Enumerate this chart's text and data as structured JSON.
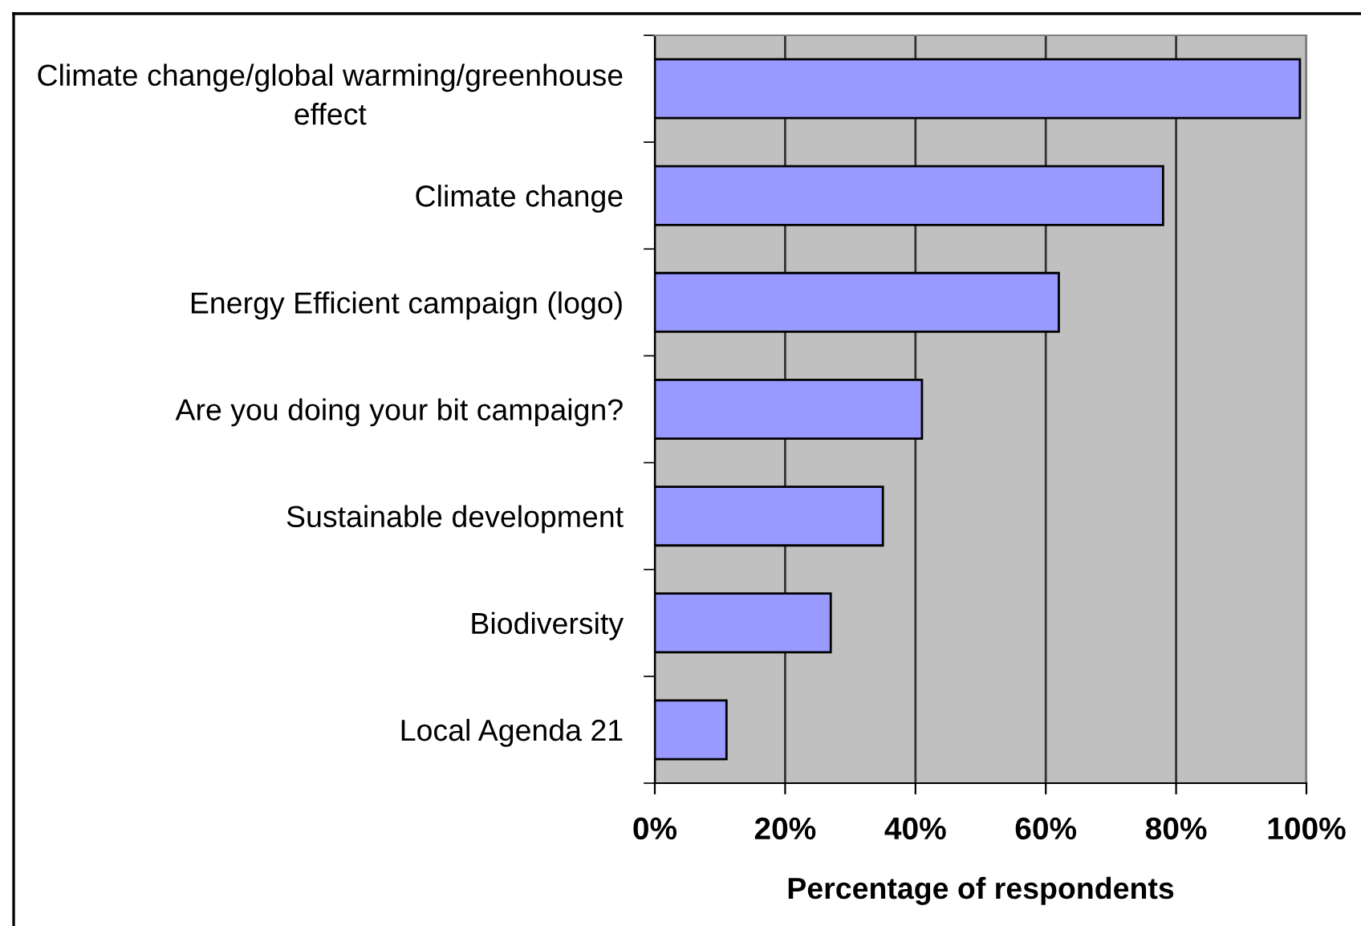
{
  "chart_data": {
    "type": "bar",
    "orientation": "horizontal",
    "categories": [
      "Climate change/global warming/greenhouse\neffect",
      "Climate change",
      "Energy Efficient campaign (logo)",
      "Are you doing your bit campaign?",
      "Sustainable development",
      "Biodiversity",
      "Local Agenda 21"
    ],
    "values": [
      99,
      78,
      62,
      41,
      35,
      27,
      11
    ],
    "color": "#9999ff",
    "xlabel": "Percentage of respondents",
    "xlim": [
      0,
      100
    ],
    "xticks": [
      {
        "value": 0,
        "label": "0%"
      },
      {
        "value": 20,
        "label": "20%"
      },
      {
        "value": 40,
        "label": "40%"
      },
      {
        "value": 60,
        "label": "60%"
      },
      {
        "value": 80,
        "label": "80%"
      },
      {
        "value": 100,
        "label": "100%"
      }
    ],
    "grid": "x"
  }
}
